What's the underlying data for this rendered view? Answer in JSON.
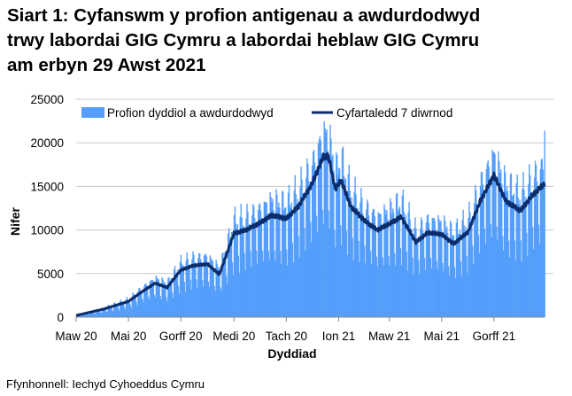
{
  "chart_data": {
    "type": "bar+line",
    "title_lines": [
      "Siart 1: Cyfanswm y profion antigenau a awdurdodwyd",
      "trwy labordai GIG Cymru a labordai heblaw GIG Cymru",
      "am erbyn 29 Awst 2021"
    ],
    "xlabel": "Dyddiad",
    "ylabel": "Nifer",
    "ylim": [
      0,
      25000
    ],
    "yticks": [
      0,
      5000,
      10000,
      15000,
      20000,
      25000
    ],
    "xlim": [
      "2020-03-01",
      "2021-08-29"
    ],
    "xticks": [
      {
        "date": "2020-03-01",
        "label": "Maw 20"
      },
      {
        "date": "2020-05-01",
        "label": "Mai 20"
      },
      {
        "date": "2020-07-01",
        "label": "Gorff 20"
      },
      {
        "date": "2020-09-01",
        "label": "Medi 20"
      },
      {
        "date": "2020-11-01",
        "label": "Tach 20"
      },
      {
        "date": "2021-01-01",
        "label": "Ion 21"
      },
      {
        "date": "2021-03-01",
        "label": "Maw 21"
      },
      {
        "date": "2021-05-01",
        "label": "Mai 21"
      },
      {
        "date": "2021-07-01",
        "label": "Gorff 21"
      }
    ],
    "grid": "horizontal",
    "legend_position": "top",
    "colors": {
      "bars": "#559ffb",
      "line": "#0b2d6b",
      "grid": "#c8c8c8"
    },
    "series": [
      {
        "name": "Profion dyddiol a awdurdodwyd",
        "type": "bar",
        "note_values": "daily; approximated around 7-day average with weekly cycle"
      },
      {
        "name": "Cyfartaledd 7 diwrnod",
        "type": "line",
        "points": [
          [
            "2020-03-01",
            200
          ],
          [
            "2020-04-01",
            900
          ],
          [
            "2020-05-01",
            1800
          ],
          [
            "2020-05-15",
            2800
          ],
          [
            "2020-06-01",
            3900
          ],
          [
            "2020-06-15",
            3400
          ],
          [
            "2020-07-01",
            5400
          ],
          [
            "2020-07-15",
            5900
          ],
          [
            "2020-08-01",
            6100
          ],
          [
            "2020-08-15",
            4900
          ],
          [
            "2020-09-01",
            9600
          ],
          [
            "2020-09-15",
            10000
          ],
          [
            "2020-10-01",
            10800
          ],
          [
            "2020-10-15",
            11700
          ],
          [
            "2020-11-01",
            11300
          ],
          [
            "2020-11-15",
            12700
          ],
          [
            "2020-12-01",
            15300
          ],
          [
            "2020-12-14",
            18400
          ],
          [
            "2020-12-20",
            18500
          ],
          [
            "2020-12-28",
            14700
          ],
          [
            "2021-01-04",
            15700
          ],
          [
            "2021-01-15",
            12700
          ],
          [
            "2021-02-01",
            11000
          ],
          [
            "2021-02-15",
            10000
          ],
          [
            "2021-03-01",
            10700
          ],
          [
            "2021-03-15",
            11500
          ],
          [
            "2021-04-01",
            8600
          ],
          [
            "2021-04-15",
            9700
          ],
          [
            "2021-05-01",
            9500
          ],
          [
            "2021-05-15",
            8400
          ],
          [
            "2021-06-01",
            9800
          ],
          [
            "2021-06-15",
            13300
          ],
          [
            "2021-07-01",
            16300
          ],
          [
            "2021-07-15",
            13300
          ],
          [
            "2021-08-01",
            12200
          ],
          [
            "2021-08-15",
            14000
          ],
          [
            "2021-08-29",
            15300
          ]
        ]
      }
    ],
    "source": "Ffynhonnell: Iechyd Cyhoeddus Cymru"
  }
}
